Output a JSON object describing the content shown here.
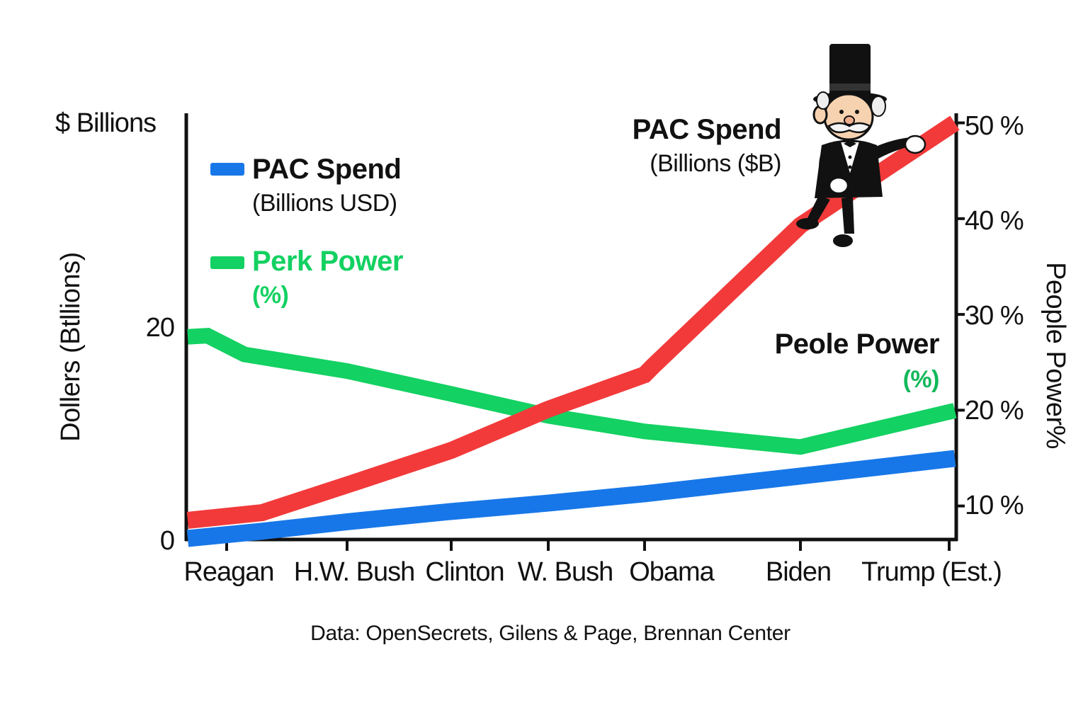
{
  "chart_data": {
    "type": "line",
    "categories": [
      "Reagan",
      "H.W. Bush",
      "Clinton",
      "W. Bush",
      "Obama",
      "Biden",
      "Trump (Est.)"
    ],
    "left_axis": {
      "unit_label": "$ Billions",
      "title": "Dollers (Btllions)",
      "tick_labels": [
        "0",
        "20"
      ],
      "ylim": [
        0,
        41
      ]
    },
    "right_axis": {
      "title": "People Power%",
      "tick_labels": [
        "10 %",
        "20 %",
        "30 %",
        "40 %",
        "50 %"
      ],
      "ylim": [
        6.5,
        51
      ]
    },
    "series": [
      {
        "name": "PAC Spend",
        "axis": "left",
        "color": "#1877e8",
        "x": [
          "Reagan",
          "Reagan",
          "H.W. Bush",
          "Clinton",
          "W. Bush",
          "Obama",
          "Biden",
          "Trump (Est.)"
        ],
        "values": [
          0.1,
          0.8,
          1.7,
          2.7,
          3.5,
          4.4,
          6.1,
          7.8
        ]
      },
      {
        "name": "Perk Power",
        "axis": "left",
        "color": "#13d162",
        "x": [
          "Reagan",
          "Reagan",
          "Reagan",
          "H.W. Bush",
          "Clinton",
          "W. Bush",
          "Obama",
          "Biden",
          "Trump (Est.)"
        ],
        "values": [
          19.5,
          19.6,
          17.8,
          16.2,
          14.0,
          11.9,
          10.4,
          8.9,
          12.4
        ]
      },
      {
        "name": "PAC Spend",
        "axis": "right",
        "color": "#f23a3a",
        "x": [
          "Reagan",
          "Reagan",
          "H.W. Bush",
          "Clinton",
          "W. Bush",
          "Obama",
          "Obama",
          "Biden",
          "Trump (Est.)"
        ],
        "values": [
          8.5,
          9.3,
          12.2,
          15.8,
          20.1,
          23.7,
          24.6,
          39.3,
          50.0
        ]
      }
    ],
    "legend": {
      "placement": "top-left",
      "items": [
        {
          "title": "PAC Spend",
          "subtitle": "(Billions USD)",
          "color": "#1877e8"
        },
        {
          "title": "Perk Power",
          "subtitle": "(%)",
          "color": "#13d162"
        }
      ]
    },
    "annotations": [
      {
        "title": "PAC Spend",
        "subtitle": "(Billions ($B)"
      },
      {
        "title": "Peole Power",
        "subtitle": "(%)",
        "subtitle_color": "#13b85a"
      }
    ],
    "source": "Data: OpenSecrets, Gilens & Page, Brennan Center",
    "illustration": "monopoly-man-icon"
  }
}
